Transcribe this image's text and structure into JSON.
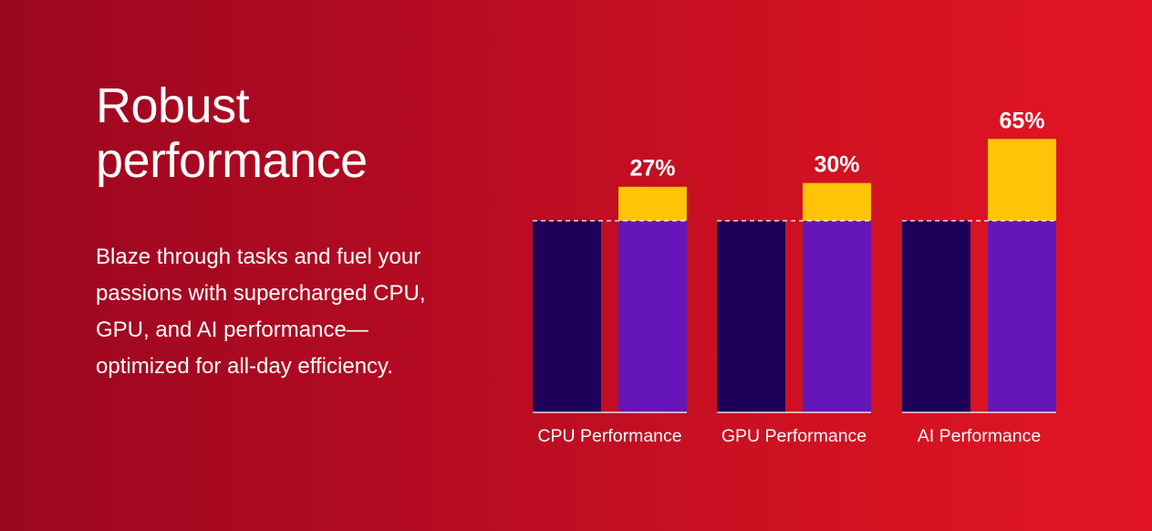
{
  "heading": {
    "lines": [
      "Robust",
      "performance"
    ]
  },
  "body": {
    "lines": [
      "Blaze through tasks and fuel your",
      "passions with supercharged CPU,",
      "GPU, and AI performance—",
      "optimized for all-day efficiency."
    ]
  },
  "colors": {
    "background_left": "#9b0720",
    "background_right": "#e31524",
    "baseline_bar": "#1c0059",
    "improved_bar": "#6616b8",
    "gain_segment": "#ffc407"
  },
  "chart_data": {
    "type": "bar",
    "categories": [
      "CPU Performance",
      "GPU Performance",
      "AI Performance"
    ],
    "baseline": [
      100,
      100,
      100
    ],
    "improvement_percent": [
      27,
      30,
      65
    ],
    "value_labels": [
      "27%",
      "30%",
      "65%"
    ],
    "baseline_line": "dashed",
    "grid": false,
    "legend": "none"
  }
}
